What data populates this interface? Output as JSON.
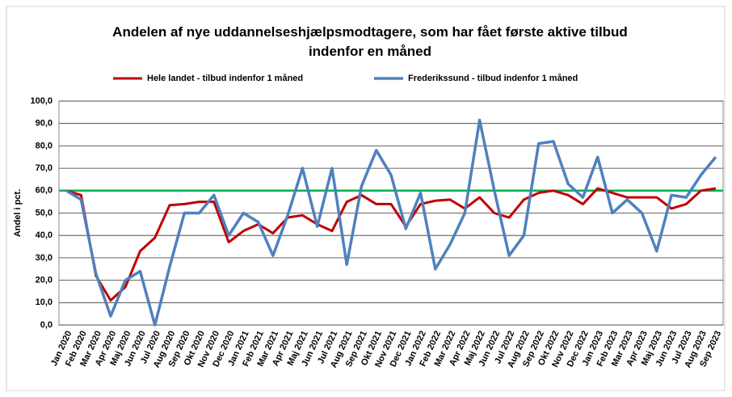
{
  "chart_data": {
    "type": "line",
    "title": "Andelen af nye uddannelseshjælpsmodtagere, som har fået første aktive tilbud indenfor en måned",
    "ylabel": "Andel i pct.",
    "categories": [
      "Jan 2020",
      "Feb 2020",
      "Mar 2020",
      "Apr 2020",
      "Maj 2020",
      "Jun 2020",
      "Jul 2020",
      "Aug 2020",
      "Sep 2020",
      "Okt 2020",
      "Nov 2020",
      "Dec 2020",
      "Jan 2021",
      "Feb 2021",
      "Mar 2021",
      "Apr 2021",
      "Maj 2021",
      "Jun 2021",
      "Jul 2021",
      "Aug 2021",
      "Sep 2021",
      "Okt 2021",
      "Nov 2021",
      "Dec 2021",
      "Jan 2022",
      "Feb 2022",
      "Mar 2022",
      "Apr 2022",
      "Maj 2022",
      "Jun 2022",
      "Jul 2022",
      "Aug 2022",
      "Sep 2022",
      "Okt 2022",
      "Nov 2022",
      "Dec 2022",
      "Jan 2023",
      "Feb 2023",
      "Mar 2023",
      "Apr 2023",
      "Maj 2023",
      "Jun 2023",
      "Jul 2023",
      "Aug 2023",
      "Sep 2023"
    ],
    "series": [
      {
        "name": "Hele landet - tilbud indenfor 1 måned",
        "color": "#c00000",
        "values": [
          60,
          58,
          22,
          11,
          17,
          33,
          39,
          53.5,
          54,
          55,
          55,
          37,
          42,
          45,
          41,
          48,
          49,
          45,
          42,
          55,
          58,
          54,
          54,
          44,
          54,
          55.5,
          56,
          52,
          57,
          50,
          48,
          56,
          59,
          60,
          58,
          54,
          61,
          59,
          57,
          57,
          57,
          52,
          54,
          60,
          61
        ]
      },
      {
        "name": "Frederikssund - tilbud indenfor 1 måned",
        "color": "#4f81bd",
        "values": [
          60,
          56,
          23,
          4,
          20,
          24,
          0,
          26,
          50,
          50,
          58,
          40,
          50,
          46,
          31,
          49,
          70,
          44,
          70,
          27,
          62,
          78,
          67,
          43,
          59,
          25,
          36,
          50,
          91.5,
          60,
          31,
          40,
          81,
          82,
          63,
          57,
          75,
          50,
          56,
          50,
          33,
          58,
          57,
          67,
          75
        ]
      }
    ],
    "reference_line": {
      "value": 60,
      "color": "#00b050"
    },
    "ylim": [
      0,
      100
    ],
    "yticks": [
      {
        "value": 0,
        "label": "0,0"
      },
      {
        "value": 10,
        "label": "10,0"
      },
      {
        "value": 20,
        "label": "20,0"
      },
      {
        "value": 30,
        "label": "30,0"
      },
      {
        "value": 40,
        "label": "40,0"
      },
      {
        "value": 50,
        "label": "50,0"
      },
      {
        "value": 60,
        "label": "60,0"
      },
      {
        "value": 70,
        "label": "70,0"
      },
      {
        "value": 80,
        "label": "80,0"
      },
      {
        "value": 90,
        "label": "90,0"
      },
      {
        "value": 100,
        "label": "100,0"
      }
    ],
    "grid": true,
    "legend": "top"
  }
}
